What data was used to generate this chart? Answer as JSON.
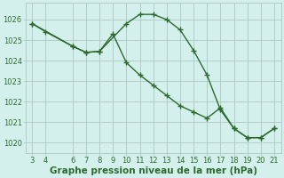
{
  "line1_x": [
    3,
    4,
    6,
    7,
    8,
    10,
    11,
    12,
    13,
    14,
    15,
    16,
    17,
    18,
    19,
    20,
    21
  ],
  "line1_y": [
    1025.8,
    1025.4,
    1024.7,
    1024.4,
    1024.45,
    1025.8,
    1026.25,
    1026.25,
    1026.0,
    1025.5,
    1024.5,
    1023.3,
    1021.6,
    1020.7,
    1020.25,
    1020.25,
    1020.7
  ],
  "line2_x": [
    3,
    6,
    7,
    8,
    9,
    10,
    11,
    12,
    13,
    14,
    15,
    16,
    17,
    18,
    19,
    20,
    21
  ],
  "line2_y": [
    1025.8,
    1024.7,
    1024.4,
    1024.45,
    1025.3,
    1023.9,
    1023.3,
    1022.8,
    1022.3,
    1021.8,
    1021.5,
    1021.2,
    1021.7,
    1020.7,
    1020.25,
    1020.25,
    1020.7
  ],
  "line_color": "#2d6a2d",
  "bg_color": "#d4f0ec",
  "grid_color": "#adc8c4",
  "xlabel": "Graphe pression niveau de la mer (hPa)",
  "xlim": [
    2.5,
    21.5
  ],
  "ylim": [
    1019.5,
    1026.8
  ],
  "yticks": [
    1020,
    1021,
    1022,
    1023,
    1024,
    1025,
    1026
  ],
  "xticks": [
    3,
    4,
    6,
    7,
    8,
    9,
    10,
    11,
    12,
    13,
    14,
    15,
    16,
    17,
    18,
    19,
    20,
    21
  ],
  "marker": "+",
  "markersize": 4,
  "linewidth": 1.0,
  "xlabel_fontsize": 7.5,
  "tick_fontsize": 6
}
